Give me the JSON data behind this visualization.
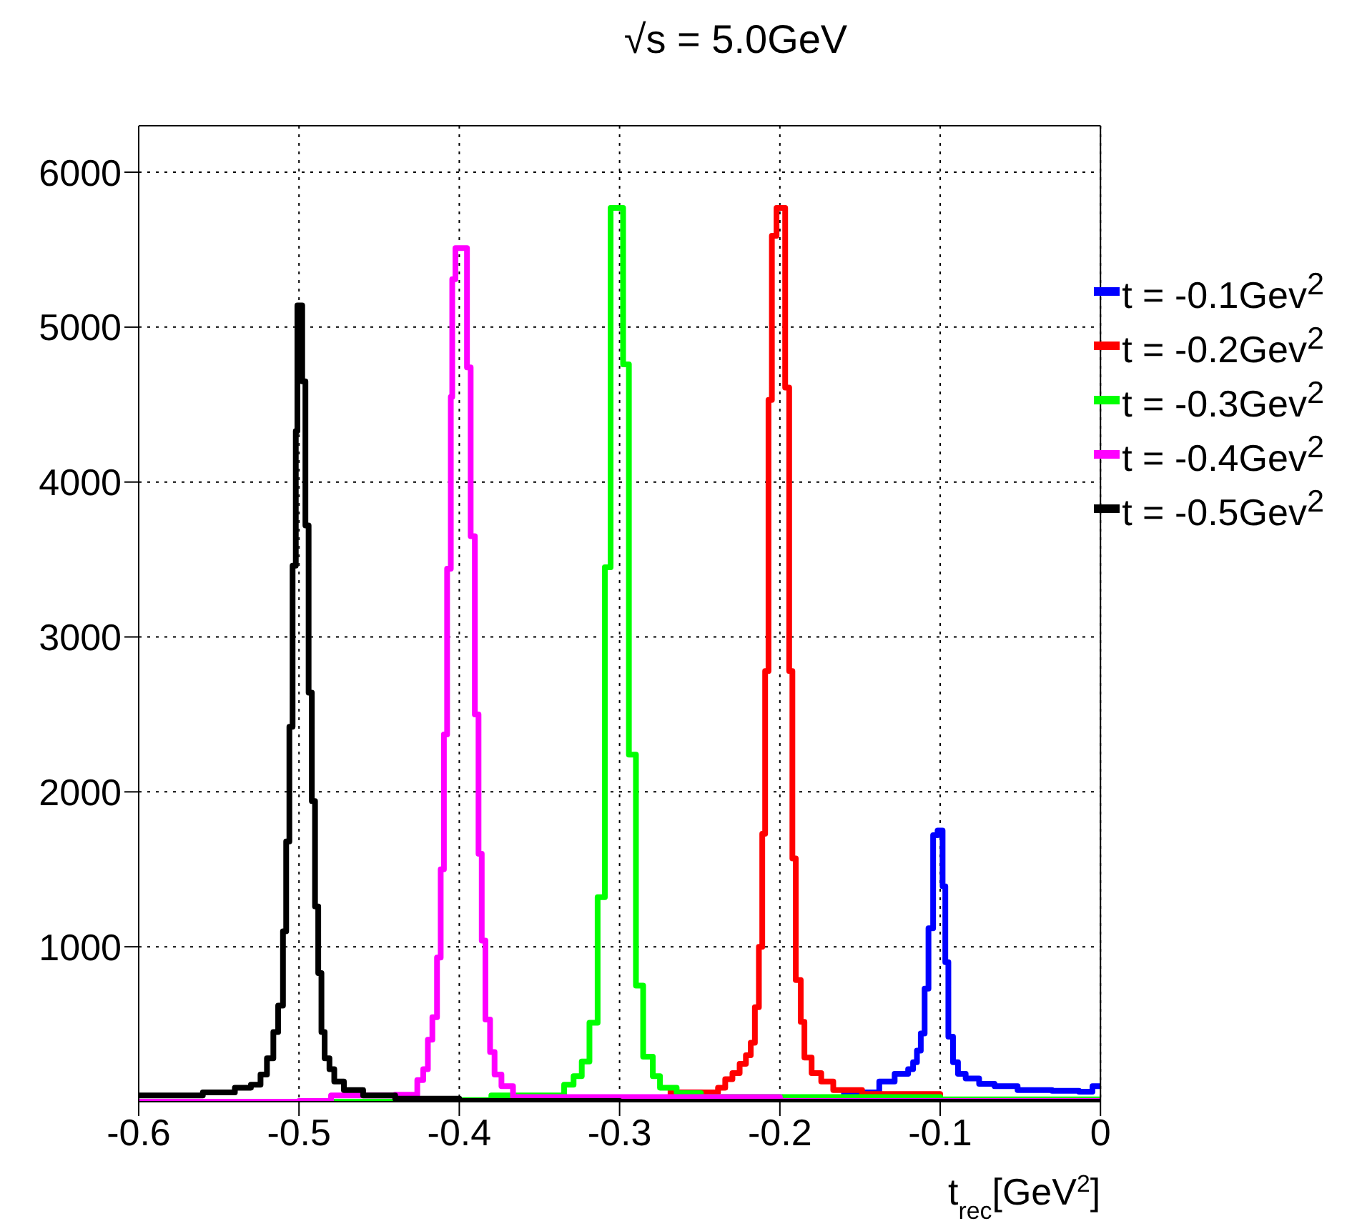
{
  "chart_data": {
    "type": "step",
    "title": "√s = 5.0GeV",
    "xlabel": "t$_{rec}$[GeV$^{2}$]",
    "xlim": [
      -0.6,
      0
    ],
    "xticks": [
      -0.6,
      -0.5,
      -0.4,
      -0.3,
      -0.2,
      -0.1,
      0
    ],
    "ylim": [
      0,
      6300
    ],
    "yticks": [
      1000,
      2000,
      3000,
      4000,
      5000,
      6000
    ],
    "grid": true,
    "legend": "top right",
    "line_style": "solid",
    "series": [
      {
        "name": "t = -0.1Gev$^{2}$",
        "color": "#0000ff",
        "x": [
          -0.6,
          -0.2,
          -0.16,
          -0.138,
          -0.1284,
          -0.12,
          -0.1169,
          -0.1145,
          -0.1121,
          -0.1097,
          -0.1073,
          -0.1044,
          -0.1016,
          -0.0985,
          -0.0968,
          -0.0949,
          -0.092,
          -0.0889,
          -0.0841,
          -0.0757,
          -0.0661,
          -0.0517,
          -0.0302,
          -0.0134,
          -0.005,
          0
        ],
        "values": [
          0,
          5,
          60,
          130,
          180,
          210,
          255,
          330,
          440,
          730,
          1120,
          1720,
          1750,
          1390,
          900,
          420,
          255,
          180,
          150,
          115,
          100,
          75,
          70,
          64,
          100,
          100
        ]
      },
      {
        "name": "t = -0.2Gev$^{2}$",
        "color": "#ff0000",
        "x": [
          -0.27,
          -0.2386,
          -0.2341,
          -0.2296,
          -0.2251,
          -0.2212,
          -0.2182,
          -0.2156,
          -0.2131,
          -0.211,
          -0.2092,
          -0.2071,
          -0.205,
          -0.2021,
          -0.1967,
          -0.1942,
          -0.1922,
          -0.1901,
          -0.187,
          -0.1847,
          -0.1802,
          -0.1742,
          -0.1667,
          -0.1487,
          -0.1,
          0
        ],
        "values": [
          60,
          90,
          145,
          185,
          245,
          300,
          380,
          610,
          1000,
          1730,
          2780,
          4530,
          5590,
          5770,
          4610,
          2780,
          1570,
          785,
          515,
          285,
          185,
          130,
          75,
          50,
          5,
          5
        ]
      },
      {
        "name": "t = -0.3Gev$^{2}$",
        "color": "#00ff00",
        "x": [
          -0.6,
          -0.44,
          -0.38,
          -0.3346,
          -0.3287,
          -0.3236,
          -0.3188,
          -0.3137,
          -0.3092,
          -0.3056,
          -0.2978,
          -0.2942,
          -0.2898,
          -0.2853,
          -0.2793,
          -0.2748,
          -0.2644,
          -0.2493,
          -0.1,
          0
        ],
        "values": [
          0,
          10,
          40,
          110,
          165,
          260,
          510,
          1320,
          3450,
          5770,
          4760,
          2240,
          750,
          290,
          165,
          90,
          55,
          30,
          15,
          15
        ]
      },
      {
        "name": "t = -0.4Gev$^{2}$",
        "color": "#ff00ff",
        "x": [
          -0.6,
          -0.5,
          -0.48,
          -0.44,
          -0.4354,
          -0.4262,
          -0.4225,
          -0.4196,
          -0.4168,
          -0.4139,
          -0.4116,
          -0.4096,
          -0.4076,
          -0.4053,
          -0.4044,
          -0.4024,
          -0.3952,
          -0.3929,
          -0.3903,
          -0.388,
          -0.386,
          -0.3837,
          -0.3808,
          -0.378,
          -0.3737,
          -0.3665,
          -0.28,
          -0.2,
          0
        ],
        "values": [
          0,
          5,
          40,
          45,
          45,
          140,
          210,
          400,
          545,
          930,
          1500,
          2370,
          3440,
          4550,
          5310,
          5510,
          4740,
          3650,
          2500,
          1600,
          1040,
          530,
          320,
          175,
          100,
          30,
          30,
          5,
          5
        ]
      },
      {
        "name": "t = -0.5Gev$^{2}$",
        "color": "#000000",
        "x": [
          -0.6,
          -0.56,
          -0.54,
          -0.53,
          -0.524,
          -0.52,
          -0.516,
          -0.513,
          -0.51,
          -0.508,
          -0.506,
          -0.504,
          -0.502,
          -0.501,
          -0.498,
          -0.496,
          -0.494,
          -0.492,
          -0.49,
          -0.488,
          -0.486,
          -0.484,
          -0.481,
          -0.478,
          -0.472,
          -0.46,
          -0.44,
          -0.4,
          -0.3,
          0
        ],
        "values": [
          40,
          60,
          90,
          110,
          175,
          280,
          450,
          620,
          1100,
          1680,
          2420,
          3460,
          4330,
          5140,
          4650,
          3720,
          2640,
          1940,
          1260,
          830,
          450,
          280,
          210,
          130,
          75,
          40,
          20,
          5,
          0,
          0
        ]
      }
    ]
  }
}
